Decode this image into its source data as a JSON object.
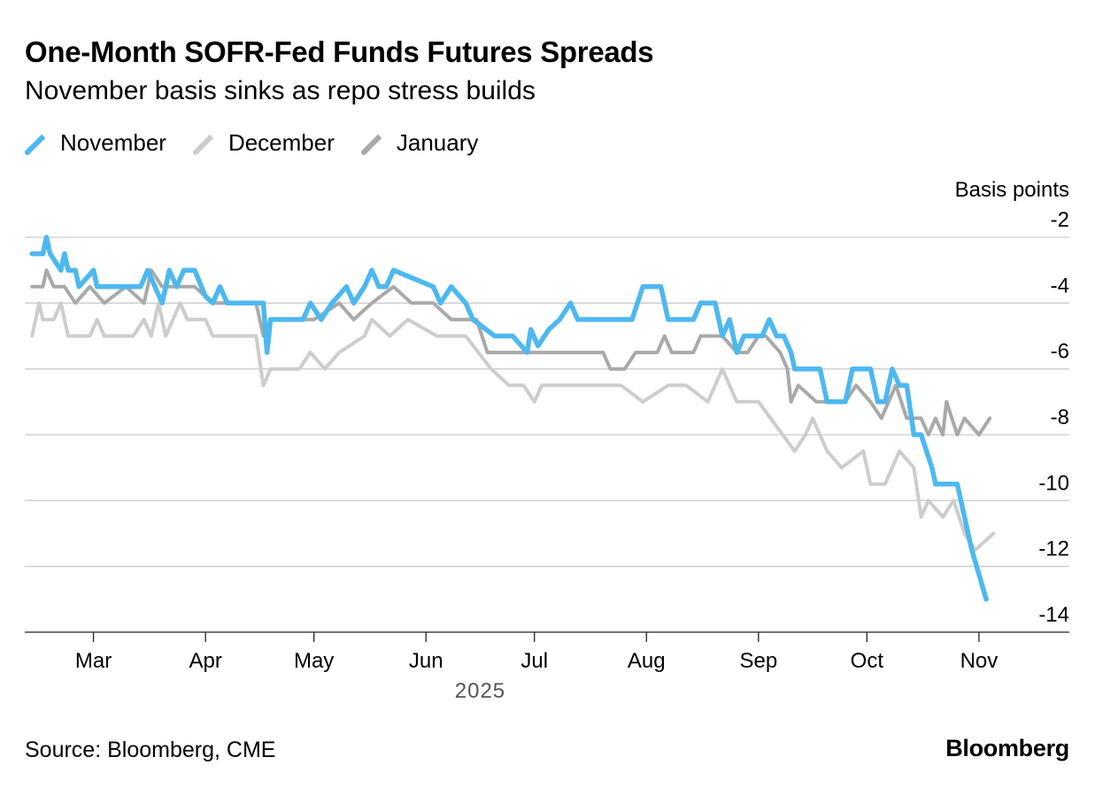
{
  "header": {
    "title": "One-Month SOFR-Fed Funds Futures Spreads",
    "subtitle": "November basis sinks as repo stress builds"
  },
  "footer": {
    "source": "Source: Bloomberg, CME",
    "brand": "Bloomberg"
  },
  "legend_placement": "top-left",
  "colors": {
    "November": "#4db8f0",
    "December": "#cdcdcd",
    "January": "#a9a9a9",
    "grid": "#cccccc",
    "axis": "#222222",
    "text": "#000000",
    "year_label": "#555555"
  },
  "chart_data": {
    "type": "line",
    "title": "One-Month SOFR-Fed Funds Futures Spreads",
    "subtitle": "November basis sinks as repo stress builds",
    "ylabel": "Basis points",
    "xlabel": "2025",
    "y_axis_side": "right",
    "ylim": [
      -14,
      -2
    ],
    "yticks": [
      -2,
      -4,
      -6,
      -8,
      -10,
      -12,
      -14
    ],
    "xlim": [
      "2025-02-10",
      "2025-11-26"
    ],
    "xticks": [
      "2025-03-01",
      "2025-04-01",
      "2025-05-01",
      "2025-06-01",
      "2025-07-01",
      "2025-08-01",
      "2025-09-01",
      "2025-10-01",
      "2025-11-01"
    ],
    "xtick_labels": [
      "Mar",
      "Apr",
      "May",
      "Jun",
      "Jul",
      "Aug",
      "Sep",
      "Oct",
      "Nov"
    ],
    "year_label": "2025",
    "grid": true,
    "series": [
      {
        "name": "November",
        "points": [
          [
            "2025-02-12",
            -2.5
          ],
          [
            "2025-02-15",
            -2.5
          ],
          [
            "2025-02-16",
            -2.0
          ],
          [
            "2025-02-17",
            -2.5
          ],
          [
            "2025-02-20",
            -3.0
          ],
          [
            "2025-02-21",
            -2.5
          ],
          [
            "2025-02-22",
            -3.0
          ],
          [
            "2025-02-24",
            -3.0
          ],
          [
            "2025-02-25",
            -3.5
          ],
          [
            "2025-03-01",
            -3.0
          ],
          [
            "2025-03-02",
            -3.5
          ],
          [
            "2025-03-14",
            -3.5
          ],
          [
            "2025-03-16",
            -3.0
          ],
          [
            "2025-03-20",
            -4.0
          ],
          [
            "2025-03-22",
            -3.0
          ],
          [
            "2025-03-24",
            -3.5
          ],
          [
            "2025-03-26",
            -3.0
          ],
          [
            "2025-03-29",
            -3.0
          ],
          [
            "2025-04-01",
            -3.8
          ],
          [
            "2025-04-03",
            -4.0
          ],
          [
            "2025-04-05",
            -3.5
          ],
          [
            "2025-04-07",
            -4.0
          ],
          [
            "2025-04-14",
            -4.0
          ],
          [
            "2025-04-17",
            -4.0
          ],
          [
            "2025-04-18",
            -5.5
          ],
          [
            "2025-04-19",
            -4.5
          ],
          [
            "2025-04-28",
            -4.5
          ],
          [
            "2025-04-30",
            -4.0
          ],
          [
            "2025-05-03",
            -4.5
          ],
          [
            "2025-05-06",
            -4.0
          ],
          [
            "2025-05-10",
            -3.5
          ],
          [
            "2025-05-12",
            -4.0
          ],
          [
            "2025-05-15",
            -3.5
          ],
          [
            "2025-05-17",
            -3.0
          ],
          [
            "2025-05-19",
            -3.5
          ],
          [
            "2025-05-21",
            -3.5
          ],
          [
            "2025-05-23",
            -3.0
          ],
          [
            "2025-06-03",
            -3.5
          ],
          [
            "2025-06-05",
            -4.0
          ],
          [
            "2025-06-08",
            -3.5
          ],
          [
            "2025-06-12",
            -4.0
          ],
          [
            "2025-06-14",
            -4.5
          ],
          [
            "2025-06-20",
            -5.0
          ],
          [
            "2025-06-25",
            -5.0
          ],
          [
            "2025-06-29",
            -5.5
          ],
          [
            "2025-06-30",
            -4.8
          ],
          [
            "2025-07-02",
            -5.3
          ],
          [
            "2025-07-05",
            -4.8
          ],
          [
            "2025-07-08",
            -4.5
          ],
          [
            "2025-07-11",
            -4.0
          ],
          [
            "2025-07-13",
            -4.5
          ],
          [
            "2025-07-28",
            -4.5
          ],
          [
            "2025-07-31",
            -3.5
          ],
          [
            "2025-08-05",
            -3.5
          ],
          [
            "2025-08-07",
            -4.5
          ],
          [
            "2025-08-14",
            -4.5
          ],
          [
            "2025-08-16",
            -4.0
          ],
          [
            "2025-08-20",
            -4.0
          ],
          [
            "2025-08-22",
            -5.0
          ],
          [
            "2025-08-24",
            -4.5
          ],
          [
            "2025-08-26",
            -5.5
          ],
          [
            "2025-08-28",
            -5.0
          ],
          [
            "2025-09-02",
            -5.0
          ],
          [
            "2025-09-04",
            -4.5
          ],
          [
            "2025-09-06",
            -5.0
          ],
          [
            "2025-09-08",
            -5.0
          ],
          [
            "2025-09-10",
            -5.5
          ],
          [
            "2025-09-11",
            -6.0
          ],
          [
            "2025-09-18",
            -6.0
          ],
          [
            "2025-09-20",
            -7.0
          ],
          [
            "2025-09-25",
            -7.0
          ],
          [
            "2025-09-27",
            -6.0
          ],
          [
            "2025-10-02",
            -6.0
          ],
          [
            "2025-10-04",
            -7.0
          ],
          [
            "2025-10-06",
            -7.0
          ],
          [
            "2025-10-08",
            -6.0
          ],
          [
            "2025-10-10",
            -6.5
          ],
          [
            "2025-10-12",
            -6.5
          ],
          [
            "2025-10-14",
            -8.0
          ],
          [
            "2025-10-16",
            -8.0
          ],
          [
            "2025-10-19",
            -9.0
          ],
          [
            "2025-10-20",
            -9.5
          ],
          [
            "2025-10-22",
            -9.5
          ],
          [
            "2025-10-24",
            -9.5
          ],
          [
            "2025-10-26",
            -9.5
          ],
          [
            "2025-10-28",
            -10.5
          ],
          [
            "2025-10-30",
            -11.5
          ],
          [
            "2025-11-03",
            -13.0
          ]
        ]
      },
      {
        "name": "December",
        "points": [
          [
            "2025-02-12",
            -5.0
          ],
          [
            "2025-02-14",
            -4.0
          ],
          [
            "2025-02-15",
            -4.5
          ],
          [
            "2025-02-18",
            -4.5
          ],
          [
            "2025-02-20",
            -4.0
          ],
          [
            "2025-02-22",
            -5.0
          ],
          [
            "2025-02-28",
            -5.0
          ],
          [
            "2025-03-02",
            -4.5
          ],
          [
            "2025-03-04",
            -5.0
          ],
          [
            "2025-03-12",
            -5.0
          ],
          [
            "2025-03-15",
            -4.5
          ],
          [
            "2025-03-17",
            -5.0
          ],
          [
            "2025-03-19",
            -4.0
          ],
          [
            "2025-03-21",
            -5.0
          ],
          [
            "2025-03-25",
            -4.0
          ],
          [
            "2025-03-27",
            -4.5
          ],
          [
            "2025-04-01",
            -4.5
          ],
          [
            "2025-04-03",
            -5.0
          ],
          [
            "2025-04-15",
            -5.0
          ],
          [
            "2025-04-17",
            -6.5
          ],
          [
            "2025-04-19",
            -6.0
          ],
          [
            "2025-04-25",
            -6.0
          ],
          [
            "2025-04-27",
            -6.0
          ],
          [
            "2025-04-30",
            -5.5
          ],
          [
            "2025-05-04",
            -6.0
          ],
          [
            "2025-05-08",
            -5.5
          ],
          [
            "2025-05-15",
            -5.0
          ],
          [
            "2025-05-17",
            -4.5
          ],
          [
            "2025-05-22",
            -5.0
          ],
          [
            "2025-05-27",
            -4.5
          ],
          [
            "2025-06-04",
            -5.0
          ],
          [
            "2025-06-12",
            -5.0
          ],
          [
            "2025-06-19",
            -6.0
          ],
          [
            "2025-06-24",
            -6.5
          ],
          [
            "2025-06-28",
            -6.5
          ],
          [
            "2025-07-01",
            -7.0
          ],
          [
            "2025-07-03",
            -6.5
          ],
          [
            "2025-07-10",
            -6.5
          ],
          [
            "2025-07-25",
            -6.5
          ],
          [
            "2025-07-31",
            -7.0
          ],
          [
            "2025-08-07",
            -6.5
          ],
          [
            "2025-08-12",
            -6.5
          ],
          [
            "2025-08-18",
            -7.0
          ],
          [
            "2025-08-22",
            -6.0
          ],
          [
            "2025-08-26",
            -7.0
          ],
          [
            "2025-09-01",
            -7.0
          ],
          [
            "2025-09-11",
            -8.5
          ],
          [
            "2025-09-14",
            -8.0
          ],
          [
            "2025-09-16",
            -7.5
          ],
          [
            "2025-09-20",
            -8.5
          ],
          [
            "2025-09-24",
            -9.0
          ],
          [
            "2025-09-30",
            -8.5
          ],
          [
            "2025-10-02",
            -9.5
          ],
          [
            "2025-10-06",
            -9.5
          ],
          [
            "2025-10-10",
            -8.5
          ],
          [
            "2025-10-14",
            -9.0
          ],
          [
            "2025-10-16",
            -10.5
          ],
          [
            "2025-10-18",
            -10.0
          ],
          [
            "2025-10-22",
            -10.5
          ],
          [
            "2025-10-25",
            -10.0
          ],
          [
            "2025-10-28",
            -11.0
          ],
          [
            "2025-10-31",
            -11.5
          ],
          [
            "2025-11-05",
            -11.0
          ]
        ]
      },
      {
        "name": "January",
        "points": [
          [
            "2025-02-12",
            -3.5
          ],
          [
            "2025-02-15",
            -3.5
          ],
          [
            "2025-02-16",
            -3.0
          ],
          [
            "2025-02-18",
            -3.5
          ],
          [
            "2025-02-21",
            -3.5
          ],
          [
            "2025-02-24",
            -4.0
          ],
          [
            "2025-02-28",
            -3.5
          ],
          [
            "2025-03-04",
            -4.0
          ],
          [
            "2025-03-10",
            -3.5
          ],
          [
            "2025-03-15",
            -4.0
          ],
          [
            "2025-03-17",
            -3.0
          ],
          [
            "2025-03-20",
            -3.5
          ],
          [
            "2025-03-24",
            -3.5
          ],
          [
            "2025-03-29",
            -3.5
          ],
          [
            "2025-04-03",
            -4.0
          ],
          [
            "2025-04-15",
            -4.0
          ],
          [
            "2025-04-17",
            -5.0
          ],
          [
            "2025-04-19",
            -4.5
          ],
          [
            "2025-05-01",
            -4.5
          ],
          [
            "2025-05-08",
            -4.0
          ],
          [
            "2025-05-12",
            -4.5
          ],
          [
            "2025-05-17",
            -4.0
          ],
          [
            "2025-05-23",
            -3.5
          ],
          [
            "2025-05-28",
            -4.0
          ],
          [
            "2025-06-03",
            -4.0
          ],
          [
            "2025-06-08",
            -4.5
          ],
          [
            "2025-06-15",
            -4.5
          ],
          [
            "2025-06-18",
            -5.5
          ],
          [
            "2025-06-28",
            -5.5
          ],
          [
            "2025-07-05",
            -5.5
          ],
          [
            "2025-07-20",
            -5.5
          ],
          [
            "2025-07-22",
            -6.0
          ],
          [
            "2025-07-26",
            -6.0
          ],
          [
            "2025-07-29",
            -5.5
          ],
          [
            "2025-08-04",
            -5.5
          ],
          [
            "2025-08-06",
            -5.0
          ],
          [
            "2025-08-08",
            -5.5
          ],
          [
            "2025-08-14",
            -5.5
          ],
          [
            "2025-08-16",
            -5.0
          ],
          [
            "2025-08-22",
            -5.0
          ],
          [
            "2025-08-26",
            -5.5
          ],
          [
            "2025-08-29",
            -5.5
          ],
          [
            "2025-09-01",
            -5.0
          ],
          [
            "2025-09-03",
            -5.0
          ],
          [
            "2025-09-07",
            -5.5
          ],
          [
            "2025-09-09",
            -6.0
          ],
          [
            "2025-09-10",
            -7.0
          ],
          [
            "2025-09-12",
            -6.5
          ],
          [
            "2025-09-17",
            -7.0
          ],
          [
            "2025-09-22",
            -7.0
          ],
          [
            "2025-09-25",
            -7.0
          ],
          [
            "2025-09-28",
            -6.5
          ],
          [
            "2025-10-02",
            -7.0
          ],
          [
            "2025-10-05",
            -7.5
          ],
          [
            "2025-10-07",
            -7.0
          ],
          [
            "2025-10-09",
            -6.5
          ],
          [
            "2025-10-12",
            -7.5
          ],
          [
            "2025-10-16",
            -7.5
          ],
          [
            "2025-10-18",
            -8.0
          ],
          [
            "2025-10-20",
            -7.5
          ],
          [
            "2025-10-22",
            -8.0
          ],
          [
            "2025-10-23",
            -7.0
          ],
          [
            "2025-10-26",
            -8.0
          ],
          [
            "2025-10-28",
            -7.5
          ],
          [
            "2025-11-01",
            -8.0
          ],
          [
            "2025-11-04",
            -7.5
          ]
        ]
      }
    ]
  }
}
